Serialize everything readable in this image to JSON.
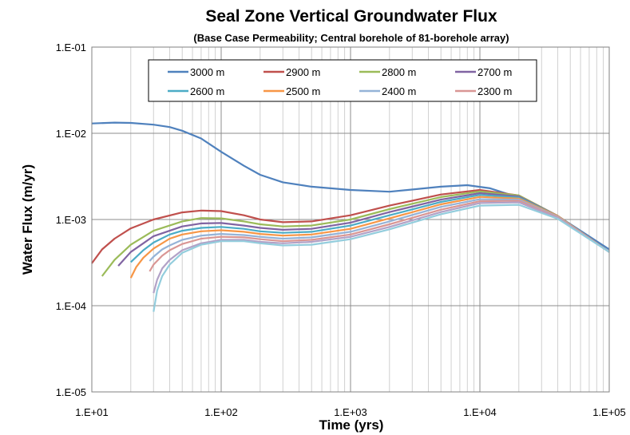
{
  "chart_data": {
    "type": "line",
    "title": "Seal Zone Vertical Groundwater Flux",
    "subtitle": "(Base Case Permeability; Central borehole of 81-borehole array)",
    "xlabel": "Time (yrs)",
    "ylabel": "Water Flux (m/yr)",
    "x_scale": "log",
    "y_scale": "log",
    "xlim": [
      10,
      100000
    ],
    "ylim": [
      1e-05,
      0.1
    ],
    "x_ticks": [
      10,
      100,
      1000,
      10000,
      100000
    ],
    "x_tick_labels": [
      "1.E+01",
      "1.E+02",
      "1.E+03",
      "1.E+04",
      "1.E+05"
    ],
    "y_ticks": [
      1e-05,
      0.0001,
      0.001,
      0.01,
      0.1
    ],
    "y_tick_labels": [
      "1.E-05",
      "1.E-04",
      "1.E-03",
      "1.E-02",
      "1.E-01"
    ],
    "grid": true,
    "legend_position": "top-center",
    "series": [
      {
        "name": "3000 m",
        "color": "#4F81BD",
        "x": [
          10,
          15,
          20,
          30,
          40,
          50,
          70,
          100,
          150,
          200,
          300,
          500,
          1000,
          2000,
          5000,
          8000,
          12000,
          20000,
          40000,
          100000
        ],
        "y": [
          0.013,
          0.0133,
          0.0132,
          0.0126,
          0.0118,
          0.0107,
          0.0087,
          0.0061,
          0.0042,
          0.0033,
          0.0027,
          0.0024,
          0.0022,
          0.0021,
          0.0024,
          0.0025,
          0.0023,
          0.0018,
          0.0011,
          0.00045
        ]
      },
      {
        "name": "2900 m",
        "color": "#C0504D",
        "x": [
          10,
          12,
          15,
          20,
          30,
          50,
          70,
          100,
          150,
          200,
          300,
          500,
          1000,
          2000,
          5000,
          10000,
          20000,
          40000,
          100000
        ],
        "y": [
          0.00031,
          0.00045,
          0.0006,
          0.00079,
          0.001,
          0.00121,
          0.00127,
          0.00125,
          0.00112,
          0.001,
          0.00093,
          0.00095,
          0.00112,
          0.00145,
          0.00195,
          0.0022,
          0.0019,
          0.0011,
          0.00042
        ]
      },
      {
        "name": "2800 m",
        "color": "#9BBB59",
        "x": [
          12,
          15,
          20,
          30,
          50,
          70,
          100,
          150,
          200,
          300,
          500,
          1000,
          2000,
          5000,
          10000,
          20000,
          40000,
          100000
        ],
        "y": [
          0.00022,
          0.00034,
          0.00051,
          0.00074,
          0.00095,
          0.00104,
          0.00103,
          0.00095,
          0.00088,
          0.00083,
          0.00085,
          0.001,
          0.00132,
          0.00182,
          0.00212,
          0.0019,
          0.0011,
          0.00042
        ]
      },
      {
        "name": "2700 m",
        "color": "#8064A2",
        "x": [
          16,
          20,
          25,
          30,
          50,
          70,
          100,
          150,
          200,
          300,
          500,
          1000,
          2000,
          5000,
          10000,
          20000,
          40000,
          100000
        ],
        "y": [
          0.00029,
          0.00042,
          0.00053,
          0.00064,
          0.00083,
          0.0009,
          0.00091,
          0.00085,
          0.0008,
          0.00076,
          0.00078,
          0.00092,
          0.00122,
          0.0017,
          0.00202,
          0.00185,
          0.0011,
          0.00042
        ]
      },
      {
        "name": "2600 m",
        "color": "#4BACC6",
        "x": [
          20,
          25,
          30,
          40,
          50,
          70,
          100,
          150,
          200,
          300,
          500,
          1000,
          2000,
          5000,
          10000,
          20000,
          40000,
          100000
        ],
        "y": [
          0.00032,
          0.00044,
          0.00054,
          0.00067,
          0.00074,
          0.0008,
          0.00082,
          0.00078,
          0.00073,
          0.0007,
          0.00072,
          0.00085,
          0.00112,
          0.0016,
          0.00193,
          0.0018,
          0.0011,
          0.00042
        ]
      },
      {
        "name": "2500 m",
        "color": "#F79646",
        "x": [
          20,
          22,
          25,
          30,
          40,
          50,
          70,
          100,
          150,
          200,
          300,
          500,
          1000,
          2000,
          5000,
          10000,
          20000,
          40000,
          100000
        ],
        "y": [
          0.00021,
          0.00028,
          0.00036,
          0.00046,
          0.0006,
          0.00067,
          0.00073,
          0.00075,
          0.00072,
          0.00068,
          0.00065,
          0.00067,
          0.00078,
          0.00103,
          0.0015,
          0.00183,
          0.00175,
          0.0011,
          0.00042
        ]
      },
      {
        "name": "2400 m",
        "color": "#95B3D7",
        "x": [
          28,
          30,
          35,
          40,
          50,
          70,
          100,
          150,
          200,
          300,
          500,
          1000,
          2000,
          5000,
          10000,
          20000,
          40000,
          100000
        ],
        "y": [
          0.00033,
          0.00037,
          0.00045,
          0.0005,
          0.00058,
          0.00065,
          0.00068,
          0.00066,
          0.00063,
          0.0006,
          0.00062,
          0.00072,
          0.00095,
          0.0014,
          0.00172,
          0.0017,
          0.00108,
          0.00042
        ]
      },
      {
        "name": "2300 m",
        "color": "#D99694",
        "x": [
          28,
          30,
          35,
          40,
          50,
          70,
          100,
          150,
          200,
          300,
          500,
          1000,
          2000,
          5000,
          10000,
          20000,
          40000,
          100000
        ],
        "y": [
          0.00025,
          0.0003,
          0.00038,
          0.00044,
          0.00052,
          0.0006,
          0.00063,
          0.00062,
          0.00059,
          0.00056,
          0.00058,
          0.00067,
          0.00088,
          0.0013,
          0.00163,
          0.00165,
          0.00106,
          0.00042
        ]
      },
      {
        "series_role": "unlabeled",
        "color": "#B2A2C7",
        "x": [
          30,
          32,
          35,
          40,
          50,
          70,
          100,
          150,
          200,
          300,
          500,
          1000,
          2000,
          5000,
          10000,
          20000,
          40000,
          100000
        ],
        "y": [
          0.00014,
          0.0002,
          0.00027,
          0.00034,
          0.00044,
          0.00053,
          0.00058,
          0.00058,
          0.00055,
          0.00053,
          0.00055,
          0.00063,
          0.00082,
          0.00122,
          0.00155,
          0.00158,
          0.00104,
          0.00042
        ]
      },
      {
        "series_role": "unlabeled",
        "color": "#93CDDD",
        "x": [
          30,
          32,
          35,
          40,
          50,
          70,
          100,
          150,
          200,
          300,
          500,
          1000,
          2000,
          5000,
          10000,
          20000,
          40000,
          100000
        ],
        "y": [
          8.5e-05,
          0.00015,
          0.00022,
          0.0003,
          0.00041,
          0.00051,
          0.00056,
          0.00056,
          0.00053,
          0.0005,
          0.00051,
          0.00059,
          0.00077,
          0.00115,
          0.00145,
          0.00148,
          0.00102,
          0.00042
        ]
      }
    ]
  }
}
